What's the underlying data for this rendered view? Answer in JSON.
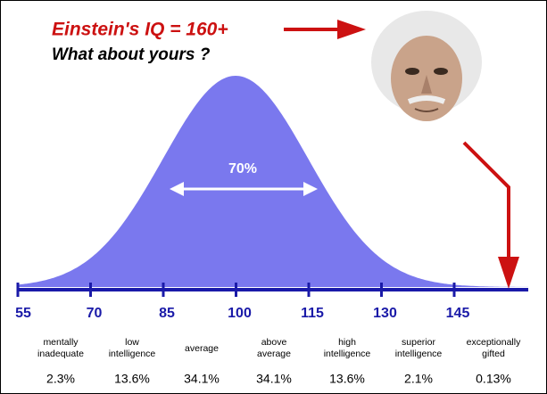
{
  "header": {
    "title": "Einstein's IQ = 160+",
    "subtitle": "What about yours ?"
  },
  "curve_label": "70%",
  "axis": {
    "ticks": [
      "55",
      "70",
      "85",
      "100",
      "115",
      "130",
      "145"
    ]
  },
  "groups": [
    {
      "label": [
        "mentally",
        "inadequate"
      ],
      "percent": "2.3%"
    },
    {
      "label": [
        "low",
        "intelligence"
      ],
      "percent": "13.6%"
    },
    {
      "label": [
        "average"
      ],
      "percent": "34.1%"
    },
    {
      "label": [
        "above",
        "average"
      ],
      "percent": "34.1%"
    },
    {
      "label": [
        "high",
        "intelligence"
      ],
      "percent": "13.6%"
    },
    {
      "label": [
        "superior",
        "intelligence"
      ],
      "percent": "2.1%"
    },
    {
      "label": [
        "exceptionally",
        "gifted"
      ],
      "percent": "0.13%"
    }
  ]
}
